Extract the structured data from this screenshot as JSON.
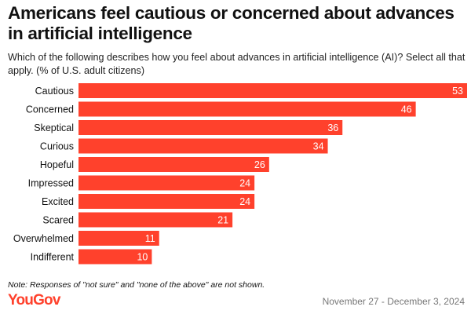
{
  "chart_data": {
    "type": "bar",
    "orientation": "horizontal",
    "title": "Americans feel cautious or concerned about advances in artificial intelligence",
    "subtitle": "Which of the following describes how you feel about advances in artificial intelligence (AI)? Select all that apply. (% of U.S. adult citizens)",
    "categories": [
      "Cautious",
      "Concerned",
      "Skeptical",
      "Curious",
      "Hopeful",
      "Impressed",
      "Excited",
      "Scared",
      "Overwhelmed",
      "Indifferent"
    ],
    "values": [
      53,
      46,
      36,
      34,
      26,
      24,
      24,
      21,
      11,
      10
    ],
    "xlim": [
      0,
      53
    ],
    "grid": false,
    "color": "#ff412c"
  },
  "note": "Note: Responses of \"not sure\" and \"none of the above\" are not shown.",
  "brand": "YouGov",
  "date": "November 27 - December 3, 2024"
}
